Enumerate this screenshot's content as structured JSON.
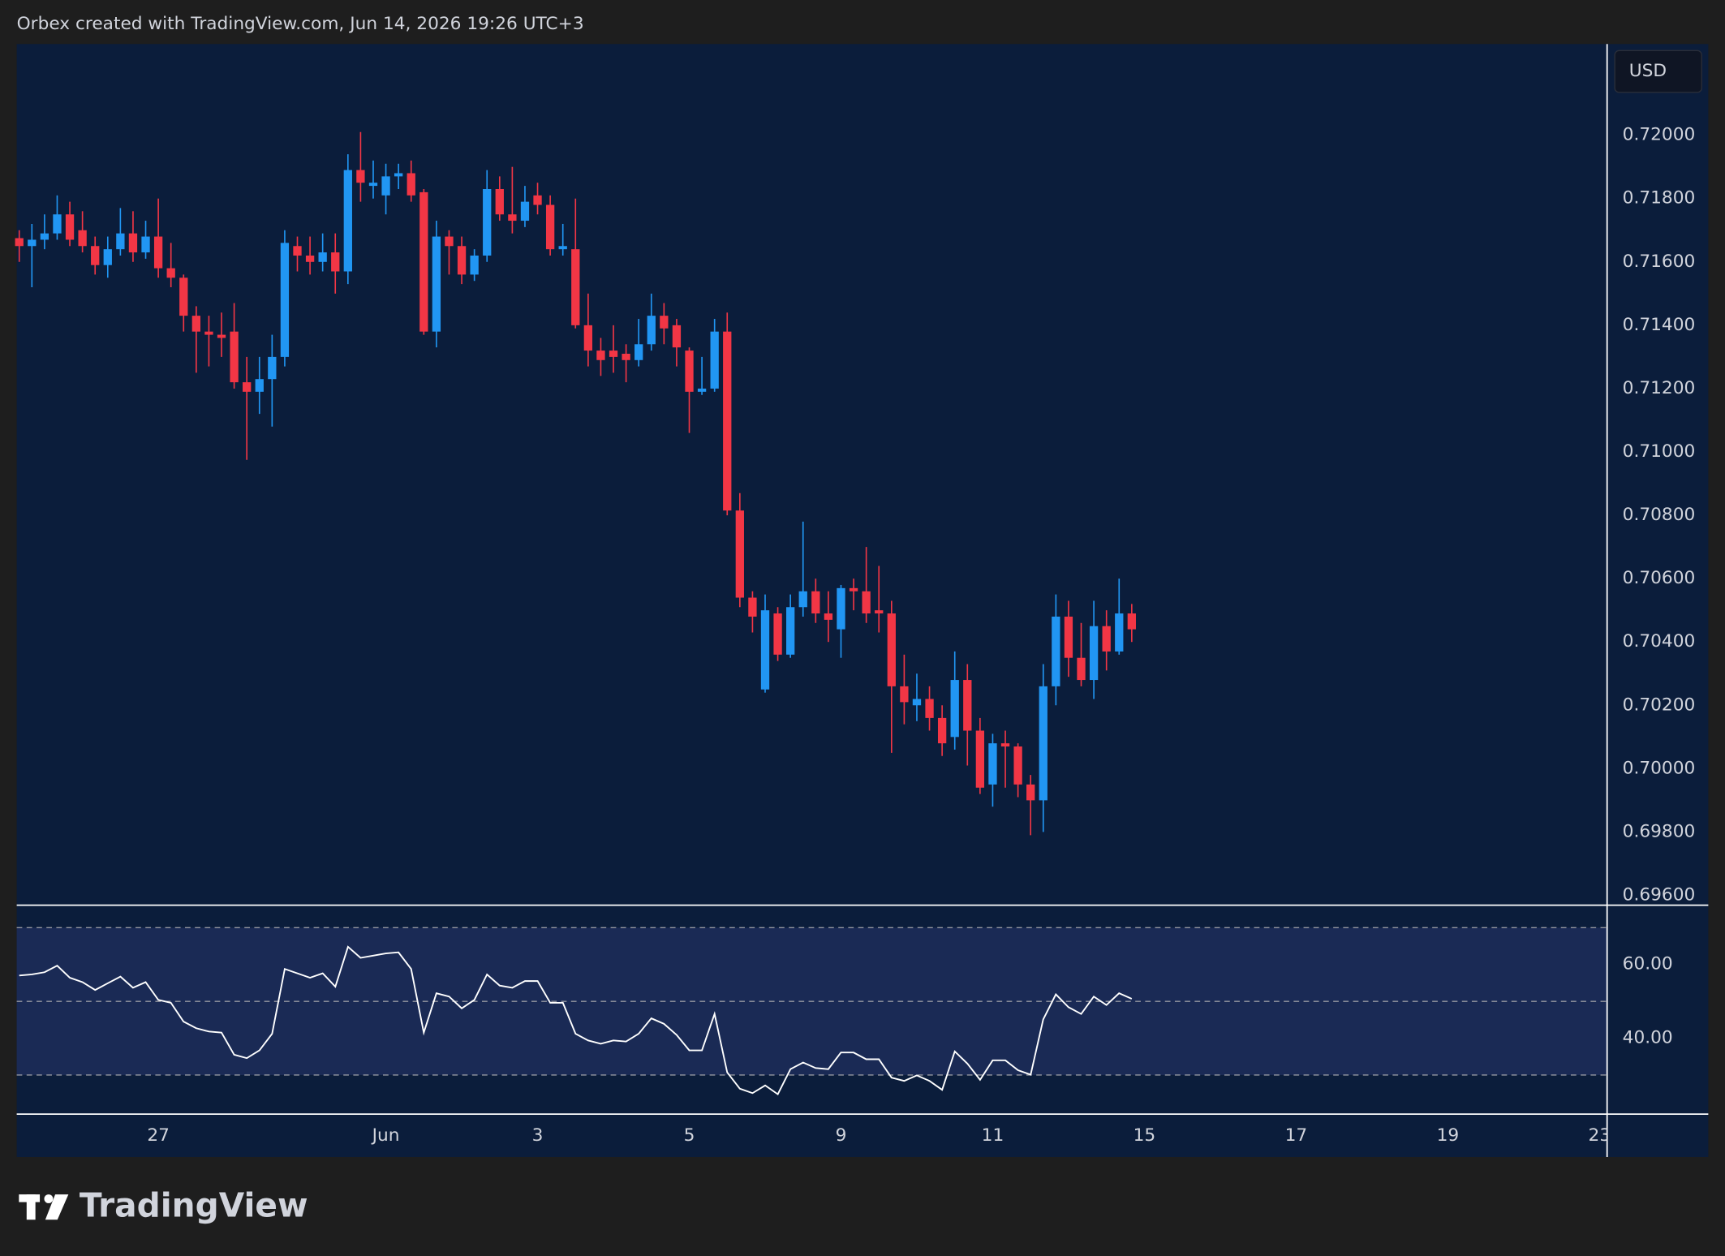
{
  "header": "Orbex created with TradingView.com, Jun 14, 2026 19:26 UTC+3",
  "currency": "USD",
  "logo": "TradingView",
  "chart_data": [
    {
      "type": "candlestick",
      "up_color": "#2196f3",
      "down_color": "#f23645",
      "open": [
        0.71675,
        0.7165,
        0.7167,
        0.7169,
        0.7175,
        0.717,
        0.7165,
        0.7159,
        0.7164,
        0.7169,
        0.7163,
        0.7168,
        0.7158,
        0.7155,
        0.7143,
        0.7138,
        0.7137,
        0.7138,
        0.7122,
        0.7119,
        0.7123,
        0.713,
        0.7165,
        0.7162,
        0.716,
        0.7163,
        0.7157,
        0.7189,
        0.7184,
        0.7181,
        0.7187,
        0.7188,
        0.7182,
        0.7138,
        0.7168,
        0.7165,
        0.7156,
        0.7162,
        0.7183,
        0.7175,
        0.7173,
        0.7181,
        0.7178,
        0.7164,
        0.7164,
        0.714,
        0.7132,
        0.7132,
        0.7131,
        0.7129,
        0.7134,
        0.7143,
        0.714,
        0.7132,
        0.7119,
        0.712,
        0.7138,
        0.70815,
        0.7054,
        0.7025,
        0.7049,
        0.7036,
        0.7051,
        0.7056,
        0.7049,
        0.7044,
        0.7057,
        0.7056,
        0.705,
        0.7049,
        0.7026,
        0.702,
        0.7022,
        0.7016,
        0.701,
        0.7028,
        0.7012,
        0.6995,
        0.7008,
        0.7007,
        0.6995,
        0.699,
        0.7026,
        0.7048,
        0.7035,
        0.7028,
        0.7045,
        0.7037,
        0.7049
      ],
      "high": [
        0.717,
        0.7172,
        0.7175,
        0.7181,
        0.7179,
        0.7176,
        0.7168,
        0.7168,
        0.7177,
        0.7176,
        0.7173,
        0.718,
        0.7166,
        0.7156,
        0.7146,
        0.7143,
        0.7144,
        0.7147,
        0.713,
        0.713,
        0.7137,
        0.717,
        0.7168,
        0.7168,
        0.7169,
        0.7169,
        0.7194,
        0.7201,
        0.7192,
        0.7191,
        0.7191,
        0.7192,
        0.7183,
        0.7173,
        0.717,
        0.7168,
        0.7164,
        0.7189,
        0.7187,
        0.719,
        0.7184,
        0.7185,
        0.7181,
        0.7172,
        0.718,
        0.715,
        0.7136,
        0.714,
        0.7134,
        0.7142,
        0.715,
        0.7147,
        0.7142,
        0.7133,
        0.713,
        0.7142,
        0.7144,
        0.7087,
        0.7056,
        0.7055,
        0.7051,
        0.7055,
        0.7078,
        0.706,
        0.7056,
        0.7058,
        0.706,
        0.707,
        0.7064,
        0.7053,
        0.7036,
        0.703,
        0.7026,
        0.702,
        0.7037,
        0.7033,
        0.7016,
        0.7011,
        0.7012,
        0.7008,
        0.6998,
        0.7033,
        0.7055,
        0.7053,
        0.7046,
        0.7053,
        0.705,
        0.706,
        0.7052
      ],
      "low": [
        0.716,
        0.7152,
        0.7164,
        0.7167,
        0.7165,
        0.7163,
        0.7156,
        0.7155,
        0.7162,
        0.716,
        0.7161,
        0.7155,
        0.7152,
        0.7138,
        0.7125,
        0.7127,
        0.713,
        0.712,
        0.70975,
        0.7112,
        0.7108,
        0.7127,
        0.7157,
        0.7156,
        0.7157,
        0.715,
        0.7153,
        0.7179,
        0.718,
        0.7175,
        0.7183,
        0.7179,
        0.7137,
        0.7133,
        0.7156,
        0.7153,
        0.7154,
        0.716,
        0.7173,
        0.7169,
        0.7171,
        0.7175,
        0.7162,
        0.7162,
        0.7139,
        0.7127,
        0.7124,
        0.7125,
        0.7122,
        0.7127,
        0.7132,
        0.7134,
        0.7127,
        0.7106,
        0.7118,
        0.7119,
        0.708,
        0.7051,
        0.7043,
        0.7024,
        0.7034,
        0.7035,
        0.7048,
        0.7046,
        0.704,
        0.7035,
        0.705,
        0.7046,
        0.7043,
        0.7005,
        0.7014,
        0.7015,
        0.7012,
        0.7004,
        0.7006,
        0.7001,
        0.6992,
        0.6988,
        0.6994,
        0.6991,
        0.6979,
        0.698,
        0.702,
        0.7029,
        0.7026,
        0.7022,
        0.7031,
        0.7036,
        0.704
      ],
      "close": [
        0.7165,
        0.7167,
        0.7169,
        0.7175,
        0.7167,
        0.7165,
        0.7159,
        0.7164,
        0.7169,
        0.7163,
        0.7168,
        0.7158,
        0.7155,
        0.7143,
        0.7138,
        0.7137,
        0.7136,
        0.7122,
        0.7119,
        0.7123,
        0.713,
        0.7166,
        0.7162,
        0.716,
        0.7163,
        0.7157,
        0.7189,
        0.7185,
        0.7185,
        0.7187,
        0.7188,
        0.7181,
        0.7138,
        0.7168,
        0.7165,
        0.7156,
        0.7162,
        0.7183,
        0.7175,
        0.7173,
        0.7179,
        0.7178,
        0.7164,
        0.7165,
        0.714,
        0.7132,
        0.7129,
        0.713,
        0.7129,
        0.7134,
        0.7143,
        0.7139,
        0.7133,
        0.7119,
        0.712,
        0.7138,
        0.70815,
        0.7054,
        0.7048,
        0.705,
        0.7036,
        0.7051,
        0.7056,
        0.7049,
        0.7047,
        0.7057,
        0.7056,
        0.7049,
        0.7049,
        0.7026,
        0.7021,
        0.7022,
        0.7016,
        0.7008,
        0.7028,
        0.7012,
        0.6994,
        0.7008,
        0.7007,
        0.6995,
        0.699,
        0.7026,
        0.7048,
        0.7035,
        0.7028,
        0.7045,
        0.7037,
        0.7049,
        0.7044
      ],
      "ylim": [
        0.69569,
        0.72288
      ],
      "yticks": [
        {
          "value": 0.696,
          "label": "0.69600"
        },
        {
          "value": 0.698,
          "label": "0.69800"
        },
        {
          "value": 0.7,
          "label": "0.70000"
        },
        {
          "value": 0.702,
          "label": "0.70200"
        },
        {
          "value": 0.704,
          "label": "0.70400"
        },
        {
          "value": 0.706,
          "label": "0.70600"
        },
        {
          "value": 0.708,
          "label": "0.70800"
        },
        {
          "value": 0.71,
          "label": "0.71000"
        },
        {
          "value": 0.712,
          "label": "0.71200"
        },
        {
          "value": 0.714,
          "label": "0.71400"
        },
        {
          "value": 0.716,
          "label": "0.71600"
        },
        {
          "value": 0.718,
          "label": "0.71800"
        },
        {
          "value": 0.72,
          "label": "0.72000"
        }
      ],
      "xlim": [
        -0.2,
        125.6
      ],
      "xticks": [
        {
          "value": 11,
          "label": "27"
        },
        {
          "value": 29,
          "label": "Jun"
        },
        {
          "value": 41,
          "label": "3"
        },
        {
          "value": 53,
          "label": "5"
        },
        {
          "value": 65,
          "label": "9"
        },
        {
          "value": 77,
          "label": "11"
        },
        {
          "value": 89,
          "label": "15"
        },
        {
          "value": 101,
          "label": "17"
        },
        {
          "value": 113,
          "label": "19"
        },
        {
          "value": 125,
          "label": "23"
        }
      ]
    },
    {
      "type": "line",
      "color": "#ffffff",
      "values": [
        57.0,
        57.3,
        57.9,
        59.7,
        56.4,
        55.2,
        53.1,
        54.9,
        56.7,
        53.7,
        55.2,
        50.4,
        49.6,
        44.5,
        42.7,
        41.8,
        41.5,
        35.5,
        34.6,
        36.7,
        41.2,
        58.8,
        57.6,
        56.4,
        57.6,
        54.0,
        64.8,
        61.8,
        62.4,
        63.0,
        63.3,
        58.8,
        41.5,
        52.2,
        51.3,
        48.1,
        50.4,
        57.3,
        54.3,
        53.7,
        55.5,
        55.5,
        49.6,
        49.6,
        41.2,
        39.4,
        38.5,
        39.4,
        39.1,
        41.2,
        45.4,
        43.9,
        40.9,
        36.7,
        36.7,
        46.6,
        30.7,
        26.3,
        25.1,
        27.2,
        24.8,
        31.6,
        33.4,
        31.9,
        31.6,
        36.1,
        36.1,
        34.3,
        34.3,
        29.3,
        28.4,
        29.9,
        28.4,
        26.0,
        36.4,
        33.1,
        28.7,
        34.0,
        34.0,
        31.3,
        30.1,
        45.1,
        51.9,
        48.4,
        46.6,
        51.3,
        49.0,
        52.2,
        50.7
      ],
      "levels": [
        70,
        50,
        30
      ],
      "band_color": "#1a2a55",
      "ylim": [
        19.4,
        76.1
      ],
      "yticks": [
        {
          "value": 40,
          "label": "40.00"
        },
        {
          "value": 60,
          "label": "60.00"
        }
      ]
    }
  ]
}
